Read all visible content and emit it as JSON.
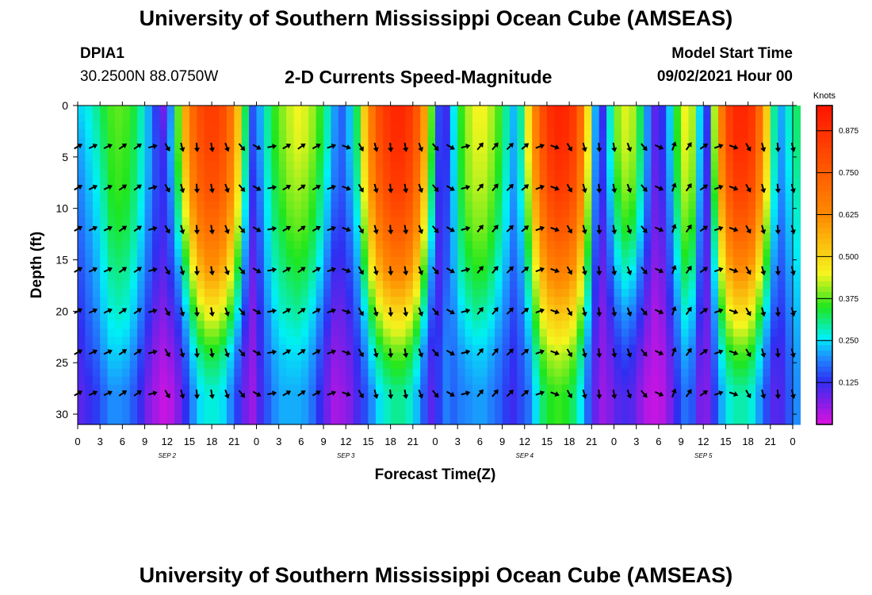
{
  "header": {
    "title_top": "University of Southern Mississippi Ocean Cube (AMSEAS)",
    "title_bottom": "University of Southern Mississippi Ocean Cube (AMSEAS)",
    "station": "DPIA1",
    "coordinates": "30.2500N  88.0750W",
    "chart_title": "2-D Currents Speed-Magnitude",
    "model_start_label": "Model Start Time",
    "model_start_value": "09/02/2021 Hour 00"
  },
  "colors": {
    "magenta": "#e011e0",
    "violet": "#8c1ce6",
    "blue": "#2f2ff2",
    "azure": "#1e8cff",
    "cyan": "#00f0f5",
    "green": "#1ee61e",
    "yellow": "#f5f51e",
    "orange": "#ff8c00",
    "red": "#ff1400",
    "arrow": "#000000"
  },
  "chart_data": {
    "type": "heatmap",
    "title": "2-D Currents Speed-Magnitude",
    "xlabel": "Forecast Time(Z)",
    "ylabel": "Depth (ft)",
    "x_range_hours": [
      0,
      96
    ],
    "ylim": [
      0,
      31
    ],
    "y_reversed": true,
    "x_tick_labels": [
      "0",
      "3",
      "6",
      "9",
      "12",
      "15",
      "18",
      "21",
      "0",
      "3",
      "6",
      "9",
      "12",
      "15",
      "18",
      "21",
      "0",
      "3",
      "6",
      "9",
      "12",
      "15",
      "18",
      "21",
      "0",
      "3",
      "6",
      "9",
      "12",
      "15",
      "18",
      "21",
      "0"
    ],
    "y_ticks": [
      0,
      5,
      10,
      15,
      20,
      25,
      30
    ],
    "day_labels": [
      {
        "label": "SEP 2",
        "hour": 12
      },
      {
        "label": "SEP 3",
        "hour": 36
      },
      {
        "label": "SEP 4",
        "hour": 60
      },
      {
        "label": "SEP 5",
        "hour": 84
      }
    ],
    "colorbar": {
      "unit": "Knots",
      "range": [
        0.0,
        0.95
      ],
      "tick_values": [
        0.125,
        0.25,
        0.375,
        0.5,
        0.625,
        0.75,
        0.875
      ],
      "tick_labels": [
        "0.125",
        "0.250",
        "0.375",
        "0.500",
        "0.625",
        "0.750",
        "0.875"
      ]
    },
    "profile_depths_ft": [
      0,
      4,
      8,
      12,
      16,
      20,
      24,
      28,
      31
    ],
    "hourly_speed_profiles_knots": [
      [
        0.25,
        0.22,
        0.2,
        0.18,
        0.16,
        0.14,
        0.12,
        0.1,
        0.1
      ],
      [
        0.27,
        0.25,
        0.23,
        0.21,
        0.19,
        0.17,
        0.15,
        0.12,
        0.12
      ],
      [
        0.3,
        0.28,
        0.26,
        0.24,
        0.22,
        0.2,
        0.17,
        0.14,
        0.14
      ],
      [
        0.34,
        0.32,
        0.3,
        0.28,
        0.26,
        0.24,
        0.21,
        0.17,
        0.17
      ],
      [
        0.37,
        0.36,
        0.35,
        0.33,
        0.3,
        0.27,
        0.24,
        0.2,
        0.2
      ],
      [
        0.38,
        0.37,
        0.36,
        0.34,
        0.31,
        0.28,
        0.24,
        0.2,
        0.2
      ],
      [
        0.37,
        0.36,
        0.35,
        0.33,
        0.3,
        0.27,
        0.23,
        0.19,
        0.19
      ],
      [
        0.34,
        0.33,
        0.32,
        0.3,
        0.27,
        0.24,
        0.2,
        0.16,
        0.16
      ],
      [
        0.29,
        0.28,
        0.27,
        0.25,
        0.22,
        0.19,
        0.15,
        0.12,
        0.12
      ],
      [
        0.22,
        0.22,
        0.21,
        0.19,
        0.17,
        0.14,
        0.1,
        0.07,
        0.07
      ],
      [
        0.14,
        0.15,
        0.15,
        0.14,
        0.12,
        0.09,
        0.06,
        0.04,
        0.04
      ],
      [
        0.08,
        0.12,
        0.13,
        0.12,
        0.1,
        0.07,
        0.04,
        0.02,
        0.02
      ],
      [
        0.2,
        0.22,
        0.2,
        0.17,
        0.14,
        0.1,
        0.06,
        0.03,
        0.03
      ],
      [
        0.38,
        0.37,
        0.33,
        0.28,
        0.21,
        0.15,
        0.1,
        0.07,
        0.07
      ],
      [
        0.58,
        0.56,
        0.5,
        0.42,
        0.32,
        0.24,
        0.17,
        0.13,
        0.13
      ],
      [
        0.72,
        0.7,
        0.65,
        0.56,
        0.45,
        0.34,
        0.25,
        0.2,
        0.2
      ],
      [
        0.8,
        0.78,
        0.74,
        0.66,
        0.55,
        0.42,
        0.31,
        0.25,
        0.25
      ],
      [
        0.84,
        0.82,
        0.78,
        0.7,
        0.6,
        0.46,
        0.34,
        0.27,
        0.27
      ],
      [
        0.84,
        0.82,
        0.78,
        0.7,
        0.6,
        0.46,
        0.34,
        0.27,
        0.27
      ],
      [
        0.8,
        0.78,
        0.74,
        0.66,
        0.56,
        0.43,
        0.31,
        0.25,
        0.25
      ],
      [
        0.7,
        0.68,
        0.64,
        0.57,
        0.47,
        0.36,
        0.25,
        0.2,
        0.2
      ],
      [
        0.54,
        0.52,
        0.48,
        0.42,
        0.34,
        0.26,
        0.18,
        0.14,
        0.14
      ],
      [
        0.33,
        0.31,
        0.28,
        0.24,
        0.19,
        0.14,
        0.1,
        0.08,
        0.08
      ],
      [
        0.16,
        0.15,
        0.13,
        0.11,
        0.09,
        0.07,
        0.06,
        0.05,
        0.05
      ],
      [
        0.22,
        0.21,
        0.19,
        0.17,
        0.15,
        0.13,
        0.12,
        0.11,
        0.11
      ],
      [
        0.3,
        0.29,
        0.27,
        0.25,
        0.23,
        0.2,
        0.18,
        0.16,
        0.16
      ],
      [
        0.36,
        0.35,
        0.33,
        0.31,
        0.28,
        0.25,
        0.22,
        0.2,
        0.2
      ],
      [
        0.4,
        0.39,
        0.37,
        0.34,
        0.31,
        0.28,
        0.24,
        0.22,
        0.22
      ],
      [
        0.43,
        0.42,
        0.4,
        0.37,
        0.33,
        0.29,
        0.25,
        0.22,
        0.22
      ],
      [
        0.45,
        0.44,
        0.41,
        0.38,
        0.34,
        0.3,
        0.25,
        0.22,
        0.22
      ],
      [
        0.44,
        0.43,
        0.4,
        0.37,
        0.33,
        0.28,
        0.24,
        0.21,
        0.21
      ],
      [
        0.41,
        0.4,
        0.37,
        0.34,
        0.3,
        0.25,
        0.21,
        0.18,
        0.18
      ],
      [
        0.36,
        0.35,
        0.32,
        0.29,
        0.25,
        0.2,
        0.16,
        0.13,
        0.13
      ],
      [
        0.29,
        0.28,
        0.25,
        0.22,
        0.18,
        0.14,
        0.1,
        0.08,
        0.08
      ],
      [
        0.21,
        0.2,
        0.18,
        0.15,
        0.12,
        0.09,
        0.06,
        0.04,
        0.04
      ],
      [
        0.17,
        0.17,
        0.16,
        0.14,
        0.12,
        0.09,
        0.07,
        0.05,
        0.05
      ],
      [
        0.23,
        0.23,
        0.21,
        0.18,
        0.15,
        0.12,
        0.09,
        0.07,
        0.07
      ],
      [
        0.33,
        0.32,
        0.29,
        0.25,
        0.21,
        0.17,
        0.13,
        0.11,
        0.11
      ],
      [
        0.52,
        0.5,
        0.46,
        0.4,
        0.33,
        0.25,
        0.19,
        0.15,
        0.15
      ],
      [
        0.68,
        0.66,
        0.62,
        0.55,
        0.46,
        0.35,
        0.26,
        0.2,
        0.2
      ],
      [
        0.8,
        0.78,
        0.74,
        0.66,
        0.56,
        0.43,
        0.32,
        0.25,
        0.25
      ],
      [
        0.86,
        0.84,
        0.8,
        0.72,
        0.62,
        0.48,
        0.36,
        0.28,
        0.28
      ],
      [
        0.9,
        0.88,
        0.84,
        0.76,
        0.65,
        0.5,
        0.38,
        0.3,
        0.3
      ],
      [
        0.9,
        0.88,
        0.84,
        0.76,
        0.65,
        0.5,
        0.38,
        0.3,
        0.3
      ],
      [
        0.86,
        0.84,
        0.8,
        0.72,
        0.61,
        0.47,
        0.35,
        0.28,
        0.28
      ],
      [
        0.77,
        0.75,
        0.7,
        0.62,
        0.52,
        0.4,
        0.29,
        0.23,
        0.23
      ],
      [
        0.6,
        0.58,
        0.53,
        0.46,
        0.37,
        0.28,
        0.2,
        0.16,
        0.16
      ],
      [
        0.38,
        0.36,
        0.32,
        0.27,
        0.21,
        0.16,
        0.12,
        0.1,
        0.1
      ],
      [
        0.15,
        0.14,
        0.13,
        0.12,
        0.11,
        0.12,
        0.14,
        0.14,
        0.14
      ],
      [
        0.12,
        0.13,
        0.14,
        0.15,
        0.16,
        0.18,
        0.19,
        0.19,
        0.19
      ],
      [
        0.26,
        0.25,
        0.24,
        0.23,
        0.22,
        0.2,
        0.18,
        0.17,
        0.17
      ],
      [
        0.36,
        0.35,
        0.34,
        0.32,
        0.29,
        0.25,
        0.21,
        0.19,
        0.19
      ],
      [
        0.42,
        0.41,
        0.4,
        0.37,
        0.33,
        0.28,
        0.23,
        0.2,
        0.2
      ],
      [
        0.45,
        0.44,
        0.42,
        0.39,
        0.35,
        0.3,
        0.24,
        0.21,
        0.21
      ],
      [
        0.45,
        0.44,
        0.42,
        0.39,
        0.35,
        0.29,
        0.24,
        0.21,
        0.21
      ],
      [
        0.42,
        0.41,
        0.39,
        0.36,
        0.32,
        0.27,
        0.22,
        0.19,
        0.19
      ],
      [
        0.37,
        0.36,
        0.34,
        0.31,
        0.27,
        0.23,
        0.19,
        0.17,
        0.17
      ],
      [
        0.3,
        0.29,
        0.27,
        0.25,
        0.22,
        0.19,
        0.16,
        0.14,
        0.14
      ],
      [
        0.23,
        0.22,
        0.21,
        0.19,
        0.17,
        0.15,
        0.13,
        0.12,
        0.12
      ],
      [
        0.3,
        0.29,
        0.27,
        0.24,
        0.21,
        0.18,
        0.16,
        0.15,
        0.15
      ],
      [
        0.48,
        0.46,
        0.42,
        0.37,
        0.31,
        0.26,
        0.21,
        0.18,
        0.18
      ],
      [
        0.66,
        0.64,
        0.6,
        0.53,
        0.45,
        0.37,
        0.3,
        0.25,
        0.25
      ],
      [
        0.8,
        0.78,
        0.74,
        0.66,
        0.57,
        0.47,
        0.38,
        0.32,
        0.32
      ],
      [
        0.88,
        0.86,
        0.82,
        0.74,
        0.64,
        0.52,
        0.42,
        0.35,
        0.35
      ],
      [
        0.91,
        0.89,
        0.85,
        0.77,
        0.66,
        0.54,
        0.43,
        0.36,
        0.36
      ],
      [
        0.9,
        0.88,
        0.84,
        0.76,
        0.65,
        0.53,
        0.42,
        0.35,
        0.35
      ],
      [
        0.85,
        0.83,
        0.79,
        0.71,
        0.61,
        0.49,
        0.39,
        0.32,
        0.32
      ],
      [
        0.72,
        0.7,
        0.66,
        0.59,
        0.5,
        0.4,
        0.31,
        0.26,
        0.26
      ],
      [
        0.48,
        0.46,
        0.43,
        0.38,
        0.32,
        0.26,
        0.2,
        0.17,
        0.17
      ],
      [
        0.22,
        0.21,
        0.19,
        0.17,
        0.14,
        0.12,
        0.1,
        0.09,
        0.09
      ],
      [
        0.12,
        0.14,
        0.13,
        0.11,
        0.09,
        0.07,
        0.06,
        0.05,
        0.05
      ],
      [
        0.28,
        0.27,
        0.24,
        0.2,
        0.16,
        0.12,
        0.09,
        0.07,
        0.07
      ],
      [
        0.4,
        0.39,
        0.35,
        0.3,
        0.24,
        0.18,
        0.13,
        0.1,
        0.1
      ],
      [
        0.44,
        0.43,
        0.4,
        0.35,
        0.28,
        0.21,
        0.15,
        0.11,
        0.11
      ],
      [
        0.42,
        0.41,
        0.38,
        0.33,
        0.26,
        0.19,
        0.13,
        0.1,
        0.1
      ],
      [
        0.33,
        0.32,
        0.29,
        0.25,
        0.19,
        0.14,
        0.09,
        0.06,
        0.06
      ],
      [
        0.2,
        0.2,
        0.18,
        0.15,
        0.11,
        0.08,
        0.05,
        0.03,
        0.03
      ],
      [
        0.1,
        0.1,
        0.09,
        0.08,
        0.06,
        0.04,
        0.03,
        0.02,
        0.02
      ],
      [
        0.13,
        0.13,
        0.12,
        0.1,
        0.08,
        0.06,
        0.04,
        0.03,
        0.03
      ],
      [
        0.24,
        0.23,
        0.21,
        0.18,
        0.15,
        0.12,
        0.09,
        0.07,
        0.07
      ],
      [
        0.36,
        0.35,
        0.33,
        0.29,
        0.25,
        0.2,
        0.16,
        0.13,
        0.13
      ],
      [
        0.45,
        0.44,
        0.42,
        0.38,
        0.33,
        0.27,
        0.22,
        0.18,
        0.18
      ],
      [
        0.42,
        0.41,
        0.39,
        0.35,
        0.3,
        0.24,
        0.19,
        0.16,
        0.16
      ],
      [
        0.25,
        0.24,
        0.22,
        0.19,
        0.16,
        0.13,
        0.1,
        0.08,
        0.08
      ],
      [
        0.14,
        0.13,
        0.12,
        0.11,
        0.1,
        0.09,
        0.08,
        0.07,
        0.07
      ],
      [
        0.42,
        0.4,
        0.36,
        0.31,
        0.26,
        0.21,
        0.17,
        0.14,
        0.14
      ],
      [
        0.68,
        0.66,
        0.61,
        0.53,
        0.44,
        0.35,
        0.27,
        0.22,
        0.22
      ],
      [
        0.84,
        0.82,
        0.77,
        0.68,
        0.57,
        0.45,
        0.34,
        0.27,
        0.27
      ],
      [
        0.9,
        0.88,
        0.83,
        0.74,
        0.62,
        0.49,
        0.37,
        0.29,
        0.29
      ],
      [
        0.9,
        0.88,
        0.83,
        0.74,
        0.62,
        0.49,
        0.37,
        0.29,
        0.29
      ],
      [
        0.86,
        0.84,
        0.79,
        0.7,
        0.58,
        0.45,
        0.34,
        0.27,
        0.27
      ],
      [
        0.72,
        0.7,
        0.65,
        0.57,
        0.47,
        0.36,
        0.27,
        0.21,
        0.21
      ],
      [
        0.52,
        0.5,
        0.46,
        0.4,
        0.33,
        0.25,
        0.19,
        0.15,
        0.15
      ],
      [
        0.3,
        0.29,
        0.27,
        0.24,
        0.2,
        0.16,
        0.12,
        0.1,
        0.1
      ],
      [
        0.22,
        0.21,
        0.2,
        0.18,
        0.16,
        0.14,
        0.12,
        0.11,
        0.11
      ],
      [
        0.28,
        0.27,
        0.25,
        0.23,
        0.21,
        0.19,
        0.17,
        0.16,
        0.16
      ],
      [
        0.32,
        0.31,
        0.29,
        0.27,
        0.25,
        0.23,
        0.21,
        0.2,
        0.2
      ]
    ],
    "vector_depths_ft": [
      4,
      8,
      12,
      16,
      20,
      24,
      28
    ],
    "vector_hours": [
      0,
      2,
      4,
      6,
      8,
      10,
      12,
      14,
      16,
      18,
      20,
      22,
      24,
      26,
      28,
      30,
      32,
      34,
      36,
      38,
      40,
      42,
      44,
      46,
      48,
      50,
      52,
      54,
      56,
      58,
      60,
      62,
      64,
      66,
      68,
      70,
      72,
      74,
      76,
      78,
      80,
      82,
      84,
      86,
      88,
      90,
      92,
      94,
      96
    ],
    "vector_directions_deg": [
      60,
      65,
      65,
      55,
      55,
      75,
      150,
      165,
      175,
      170,
      160,
      140,
      120,
      80,
      60,
      55,
      60,
      70,
      110,
      150,
      165,
      175,
      170,
      160,
      140,
      120,
      75,
      40,
      40,
      45,
      50,
      70,
      110,
      150,
      165,
      175,
      170,
      160,
      140,
      115,
      20,
      35,
      55,
      70,
      110,
      150,
      165,
      175,
      165
    ]
  }
}
